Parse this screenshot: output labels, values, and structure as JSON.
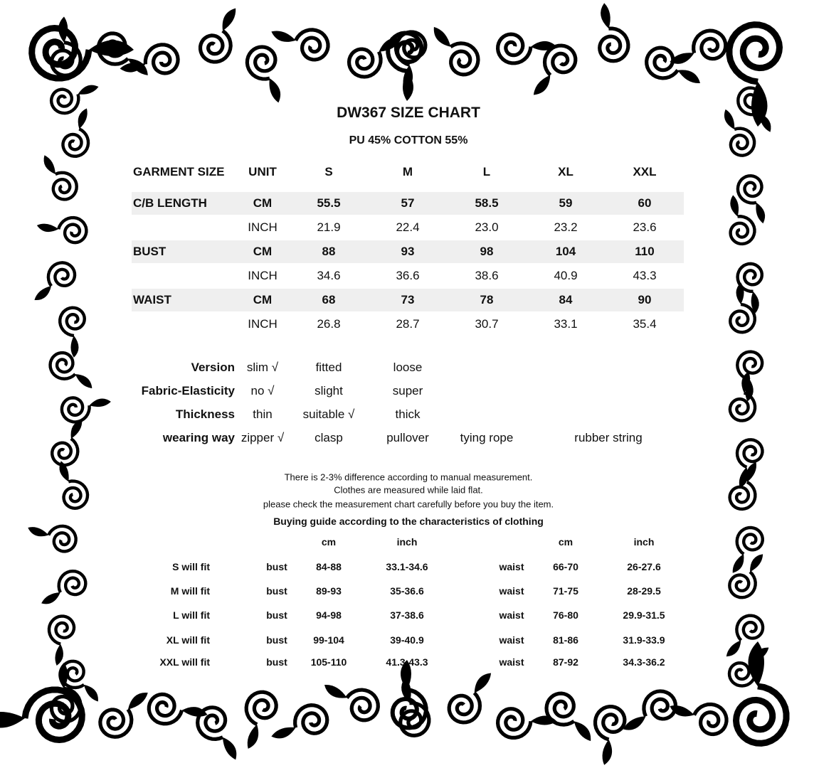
{
  "title": "DW367 SIZE CHART",
  "material": "PU 45% COTTON 55%",
  "size_table": {
    "headers": [
      "GARMENT SIZE",
      "UNIT",
      "S",
      "M",
      "L",
      "XL",
      "XXL"
    ],
    "rows": [
      {
        "label": "C/B LENGTH",
        "unit": "CM",
        "values": [
          "55.5",
          "57",
          "58.5",
          "59",
          "60"
        ],
        "bold": true
      },
      {
        "label": "",
        "unit": "INCH",
        "values": [
          "21.9",
          "22.4",
          "23.0",
          "23.2",
          "23.6"
        ],
        "bold": false
      },
      {
        "label": "BUST",
        "unit": "CM",
        "values": [
          "88",
          "93",
          "98",
          "104",
          "110"
        ],
        "bold": true
      },
      {
        "label": "",
        "unit": "INCH",
        "values": [
          "34.6",
          "36.6",
          "38.6",
          "40.9",
          "43.3"
        ],
        "bold": false
      },
      {
        "label": "WAIST",
        "unit": "CM",
        "values": [
          "68",
          "73",
          "78",
          "84",
          "90"
        ],
        "bold": true
      },
      {
        "label": "",
        "unit": "INCH",
        "values": [
          "26.8",
          "28.7",
          "30.7",
          "33.1",
          "35.4"
        ],
        "bold": false
      }
    ]
  },
  "attributes": [
    {
      "label": "Version",
      "options": [
        "slim √",
        "fitted",
        "loose"
      ]
    },
    {
      "label": "Fabric-Elasticity",
      "options": [
        "no √",
        "slight",
        "super"
      ]
    },
    {
      "label": "Thickness",
      "options": [
        "thin",
        "suitable √",
        "thick"
      ]
    },
    {
      "label": "wearing way",
      "options": [
        "zipper √",
        "clasp",
        "pullover",
        "tying rope",
        "rubber string"
      ]
    }
  ],
  "notes": [
    "There is 2-3% difference according to manual measurement.",
    "Clothes are measured while laid flat.",
    "please check the measurement chart carefully before you buy the item."
  ],
  "buying_guide": {
    "title": "Buying guide according to the characteristics  of clothing",
    "headers": [
      "cm",
      "inch",
      "cm",
      "inch"
    ],
    "rows": [
      {
        "label": "S  will  fit",
        "bust": "bust",
        "bust_cm": "84-88",
        "bust_inch": "33.1-34.6",
        "waist": "waist",
        "waist_cm": "66-70",
        "waist_inch": "26-27.6"
      },
      {
        "label": "M will fit",
        "bust": "bust",
        "bust_cm": "89-93",
        "bust_inch": "35-36.6",
        "waist": "waist",
        "waist_cm": "71-75",
        "waist_inch": "28-29.5"
      },
      {
        "label": "L  will fit",
        "bust": "bust",
        "bust_cm": "94-98",
        "bust_inch": "37-38.6",
        "waist": "waist",
        "waist_cm": "76-80",
        "waist_inch": "29.9-31.5"
      },
      {
        "label": "XL  will fit",
        "bust": "bust",
        "bust_cm": "99-104",
        "bust_inch": "39-40.9",
        "waist": "waist",
        "waist_cm": "81-86",
        "waist_inch": "31.9-33.9"
      },
      {
        "label": "XXL  will fit",
        "bust": "bust",
        "bust_cm": "105-110",
        "bust_inch": "41.3-43.3",
        "waist": "waist",
        "waist_cm": "87-92",
        "waist_inch": "34.3-36.2"
      }
    ]
  },
  "colors": {
    "ink": "#111111",
    "row_shade": "#efefef"
  },
  "decoration": "baroque-scroll-frame"
}
